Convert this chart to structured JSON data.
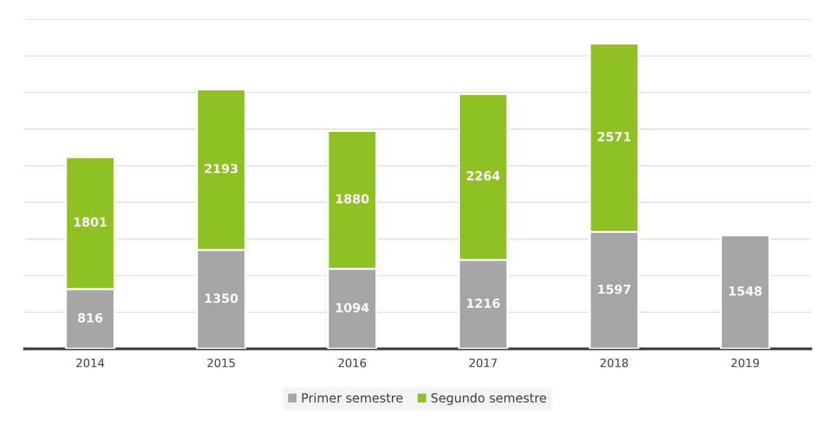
{
  "chart_data": {
    "type": "bar",
    "stacked": true,
    "categories": [
      "2014",
      "2015",
      "2016",
      "2017",
      "2018",
      "2019"
    ],
    "series": [
      {
        "name": "Primer semestre",
        "color": "#a5a5a5",
        "values": [
          816,
          1350,
          1094,
          1216,
          1597,
          1548
        ]
      },
      {
        "name": "Segundo semestre",
        "color": "#8fc125",
        "values": [
          1801,
          2193,
          1880,
          2264,
          2571,
          null
        ]
      }
    ],
    "ylim": [
      0,
      4500
    ],
    "yticks": [
      {
        "value": 0,
        "label": null
      },
      {
        "value": 500,
        "label": null
      },
      {
        "value": 1000,
        "label": null
      },
      {
        "value": 1500,
        "label": null
      },
      {
        "value": 2000,
        "label": null
      },
      {
        "value": 2500,
        "label": null
      },
      {
        "value": 3000,
        "label": null
      },
      {
        "value": 3500,
        "label": null
      },
      {
        "value": 4000,
        "label": null
      },
      {
        "value": 4500,
        "label": null
      }
    ],
    "grid": "y",
    "legend": "bottom",
    "data_labels": true,
    "tick_labels": "x"
  }
}
